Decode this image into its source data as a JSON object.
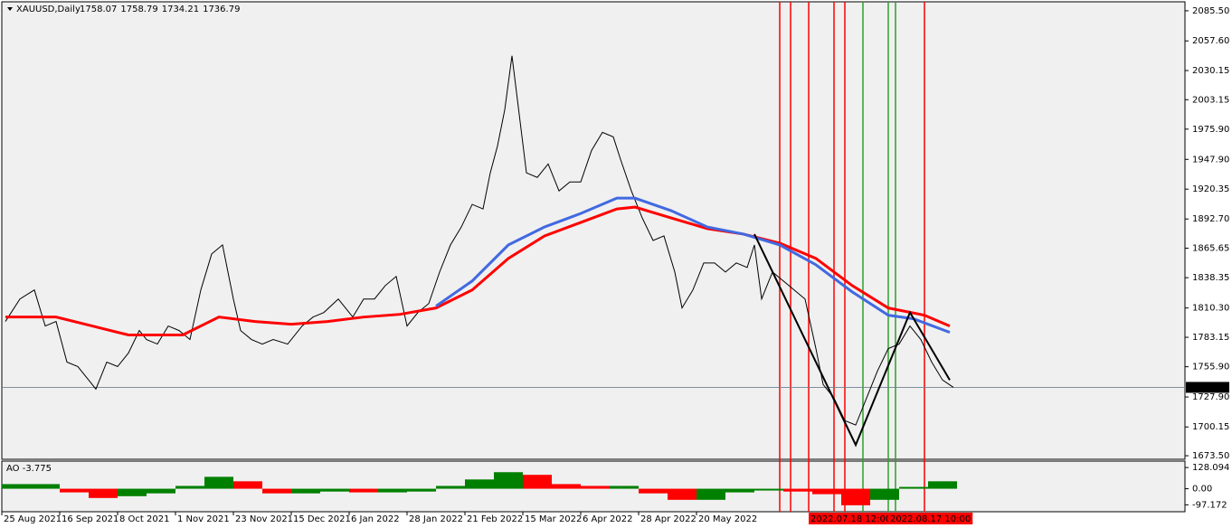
{
  "chart_data": [
    {
      "type": "line",
      "title": "XAUUSD,Daily",
      "ohlc": [
        1758.07,
        1758.79,
        1734.21,
        1736.79
      ],
      "ylim": [
        1670.2,
        2093.8
      ],
      "yticks": [
        {
          "value": 2085.5,
          "label": "2085.50"
        },
        {
          "value": 2057.6,
          "label": "2057.60"
        },
        {
          "value": 2030.15,
          "label": "2030.15"
        },
        {
          "value": 2003.15,
          "label": "2003.15"
        },
        {
          "value": 1975.9,
          "label": "1975.90"
        },
        {
          "value": 1947.9,
          "label": "1947.90"
        },
        {
          "value": 1920.35,
          "label": "1920.35"
        },
        {
          "value": 1892.7,
          "label": "1892.70"
        },
        {
          "value": 1865.65,
          "label": "1865.65"
        },
        {
          "value": 1838.35,
          "label": "1838.35"
        },
        {
          "value": 1810.3,
          "label": "1810.30"
        },
        {
          "value": 1783.15,
          "label": "1783.15"
        },
        {
          "value": 1755.9,
          "label": "1755.90"
        },
        {
          "value": 1727.9,
          "label": "1727.90"
        },
        {
          "value": 1700.15,
          "label": "1700.15"
        },
        {
          "value": 1673.5,
          "label": "1673.50"
        }
      ],
      "xlim": [
        0,
        327
      ],
      "xticks": [
        {
          "value": 0,
          "label": "25 Aug 2021"
        },
        {
          "value": 16,
          "label": "16 Sep 2021"
        },
        {
          "value": 32,
          "label": "8 Oct 2021"
        },
        {
          "value": 48,
          "label": "1 Nov 2021"
        },
        {
          "value": 64,
          "label": "23 Nov 2021"
        },
        {
          "value": 80,
          "label": "15 Dec 2021"
        },
        {
          "value": 96,
          "label": "6 Jan 2022"
        },
        {
          "value": 112,
          "label": "28 Jan 2022"
        },
        {
          "value": 128,
          "label": "21 Feb 2022"
        },
        {
          "value": 144,
          "label": "15 Mar 2022"
        },
        {
          "value": 160,
          "label": "6 Apr 2022"
        },
        {
          "value": 176,
          "label": "28 Apr 2022"
        },
        {
          "value": 192,
          "label": "20 May 2022"
        }
      ],
      "series": [
        {
          "name": "XAUUSD",
          "color": "#000000",
          "x": [
            1,
            5,
            9,
            12,
            15,
            18,
            21,
            24,
            26,
            29,
            32,
            35,
            38,
            40,
            43,
            46,
            49,
            52,
            55,
            58,
            61,
            64,
            66,
            69,
            72,
            75,
            79,
            83,
            86,
            89,
            93,
            97,
            100,
            103,
            106,
            109,
            112,
            115,
            118,
            121,
            124,
            127,
            130,
            133,
            135,
            137,
            139,
            141,
            143,
            145,
            148,
            151,
            154,
            157,
            160,
            163,
            166,
            169,
            171,
            174,
            177,
            180,
            183,
            186,
            188,
            191,
            194,
            197,
            200,
            203,
            206,
            208,
            210,
            213,
            216,
            219,
            222,
            225,
            227,
            230,
            233,
            236,
            239,
            242,
            245,
            248,
            251,
            254,
            257,
            260,
            263
          ],
          "values": [
            1797.8,
            1818.6,
            1827.0,
            1793.6,
            1797.8,
            1760.2,
            1756.1,
            1743.6,
            1735.2,
            1760.2,
            1756.1,
            1768.6,
            1789.4,
            1781.1,
            1776.9,
            1793.6,
            1789.4,
            1781.1,
            1827.0,
            1860.3,
            1868.7,
            1818.6,
            1789.4,
            1781.1,
            1776.9,
            1781.1,
            1776.9,
            1793.6,
            1801.9,
            1806.1,
            1818.6,
            1801.9,
            1818.6,
            1818.6,
            1831.1,
            1839.5,
            1793.6,
            1806.1,
            1814.4,
            1843.6,
            1868.7,
            1885.3,
            1906.2,
            1902.0,
            1935.4,
            1960.4,
            1993.8,
            2043.8,
            1989.6,
            1935.4,
            1931.2,
            1943.7,
            1918.7,
            1927.0,
            1927.0,
            1956.2,
            1972.9,
            1968.7,
            1947.9,
            1918.7,
            1893.7,
            1872.8,
            1877.0,
            1843.6,
            1810.3,
            1827.0,
            1852.0,
            1852.0,
            1843.6,
            1852.0,
            1847.8,
            1868.7,
            1818.6,
            1843.6,
            1835.3,
            1827.0,
            1818.6,
            1772.7,
            1739.4,
            1726.9,
            1706.0,
            1701.9,
            1726.9,
            1751.9,
            1772.7,
            1776.9,
            1793.6,
            1781.1,
            1760.2,
            1743.6,
            1736.79
          ]
        },
        {
          "name": "EMA red",
          "color": "#ff0000",
          "width": 3,
          "x": [
            1,
            15,
            25,
            35,
            50,
            60,
            70,
            80,
            90,
            100,
            110,
            120,
            130,
            140,
            150,
            160,
            170,
            175,
            185,
            195,
            205,
            215,
            225,
            235,
            245,
            255,
            262
          ],
          "values": [
            1801.9,
            1801.9,
            1793.6,
            1785.3,
            1785.3,
            1801.9,
            1797.8,
            1795.3,
            1797.8,
            1801.9,
            1804.4,
            1810.3,
            1827.0,
            1856.2,
            1877.0,
            1889.5,
            1902.0,
            1903.7,
            1893.7,
            1883.7,
            1878.7,
            1870.3,
            1856.2,
            1831.1,
            1810.3,
            1803.6,
            1793.6
          ]
        },
        {
          "name": "EMA blue",
          "color": "#4169e1",
          "width": 3,
          "x": [
            120,
            130,
            140,
            150,
            160,
            170,
            175,
            185,
            195,
            205,
            215,
            225,
            235,
            245,
            252,
            262
          ],
          "values": [
            1812.0,
            1835.3,
            1868.7,
            1885.3,
            1897.8,
            1912.0,
            1912.0,
            1900.4,
            1885.3,
            1878.7,
            1868.7,
            1850.3,
            1825.3,
            1803.6,
            1800.3,
            1787.7
          ]
        },
        {
          "name": "ZigZag",
          "color": "#000000",
          "width": 2,
          "x": [
            208,
            236,
            251,
            262
          ],
          "values": [
            1878.7,
            1683.5,
            1806.1,
            1743.6
          ]
        }
      ],
      "vlines": [
        {
          "x": 215,
          "color": "#ff0000"
        },
        {
          "x": 218,
          "color": "#ff0000"
        },
        {
          "x": 223,
          "color": "#ff0000"
        },
        {
          "x": 230,
          "color": "#ff0000"
        },
        {
          "x": 233,
          "color": "#ff0000"
        },
        {
          "x": 238,
          "color": "#2ca02c"
        },
        {
          "x": 245,
          "color": "#2ca02c"
        },
        {
          "x": 247,
          "color": "#2ca02c"
        },
        {
          "x": 255,
          "color": "#ff0000"
        }
      ],
      "vline_labels": [
        {
          "x": 223,
          "label": "2022.07.18 12:00"
        },
        {
          "x": 245,
          "label": "2022.08.17 10:00"
        }
      ]
    },
    {
      "type": "bar",
      "title": "AO -3.775",
      "ylim": [
        -139,
        167
      ],
      "yticks": [
        128.094,
        {
          "value": 0,
          "label": "0.00"
        },
        -97.172
      ],
      "step": 8,
      "values": [
        28,
        28,
        -22,
        -56,
        -45,
        -28,
        17,
        72,
        45,
        -28,
        -28,
        -17,
        -22,
        -22,
        -17,
        17,
        56,
        100,
        84,
        28,
        17,
        17,
        -28,
        -67,
        -67,
        -22,
        -11,
        -17,
        -33,
        -100,
        -67,
        11,
        45
      ],
      "up_color": "#008000",
      "down_color": "#ff0000"
    }
  ]
}
